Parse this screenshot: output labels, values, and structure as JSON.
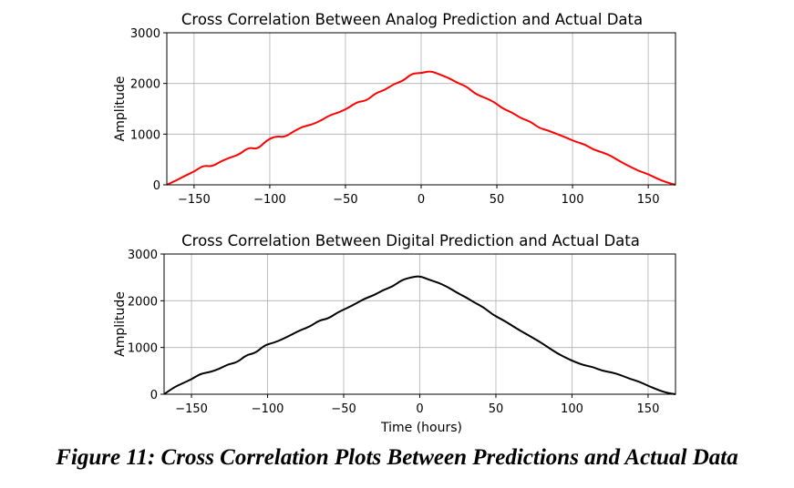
{
  "caption": "Figure 11: Cross Correlation Plots Between Predictions and Actual Data",
  "chart_data": [
    {
      "type": "line",
      "title": "Cross Correlation Between Analog Prediction and Actual Data",
      "xlabel": "",
      "ylabel": "Amplitude",
      "xlim": [
        -168,
        168
      ],
      "ylim": [
        0,
        3000
      ],
      "xticks": [
        -150,
        -100,
        -50,
        0,
        50,
        100,
        150
      ],
      "yticks": [
        0,
        1000,
        2000,
        3000
      ],
      "grid": true,
      "series": [
        {
          "color": "#ff0000",
          "x": [
            -168,
            -162,
            -156,
            -150,
            -144,
            -138,
            -132,
            -126,
            -120,
            -114,
            -108,
            -102,
            -96,
            -90,
            -84,
            -78,
            -72,
            -66,
            -60,
            -54,
            -48,
            -42,
            -36,
            -30,
            -24,
            -18,
            -12,
            -6,
            0,
            6,
            12,
            18,
            24,
            30,
            36,
            42,
            48,
            54,
            60,
            66,
            72,
            78,
            84,
            90,
            96,
            102,
            108,
            114,
            120,
            126,
            132,
            138,
            144,
            150,
            156,
            162,
            168
          ],
          "y": [
            0,
            80,
            180,
            260,
            380,
            360,
            470,
            540,
            600,
            740,
            700,
            880,
            960,
            940,
            1060,
            1150,
            1190,
            1270,
            1380,
            1430,
            1520,
            1640,
            1660,
            1810,
            1870,
            1990,
            2050,
            2200,
            2200,
            2250,
            2180,
            2110,
            2010,
            1940,
            1790,
            1720,
            1640,
            1500,
            1430,
            1310,
            1250,
            1120,
            1070,
            1000,
            930,
            850,
            800,
            690,
            640,
            560,
            450,
            360,
            270,
            210,
            120,
            50,
            0
          ]
        }
      ]
    },
    {
      "type": "line",
      "title": "Cross Correlation Between Digital Prediction and Actual Data",
      "xlabel": "Time (hours)",
      "ylabel": "Amplitude",
      "xlim": [
        -168,
        168
      ],
      "ylim": [
        0,
        3000
      ],
      "xticks": [
        -150,
        -100,
        -50,
        0,
        50,
        100,
        150
      ],
      "yticks": [
        0,
        1000,
        2000,
        3000
      ],
      "grid": true,
      "series": [
        {
          "color": "#000000",
          "x": [
            -168,
            -162,
            -156,
            -150,
            -144,
            -138,
            -132,
            -126,
            -120,
            -114,
            -108,
            -102,
            -96,
            -90,
            -84,
            -78,
            -72,
            -66,
            -60,
            -54,
            -48,
            -42,
            -36,
            -30,
            -24,
            -18,
            -12,
            -6,
            0,
            6,
            12,
            18,
            24,
            30,
            36,
            42,
            48,
            54,
            60,
            66,
            72,
            78,
            84,
            90,
            96,
            102,
            108,
            114,
            120,
            126,
            132,
            138,
            144,
            150,
            156,
            162,
            168
          ],
          "y": [
            0,
            140,
            230,
            320,
            440,
            470,
            540,
            640,
            680,
            840,
            880,
            1050,
            1100,
            1180,
            1280,
            1380,
            1450,
            1580,
            1620,
            1750,
            1840,
            1940,
            2050,
            2120,
            2230,
            2300,
            2440,
            2500,
            2530,
            2450,
            2390,
            2300,
            2180,
            2080,
            1960,
            1860,
            1700,
            1600,
            1480,
            1360,
            1250,
            1140,
            1010,
            880,
            780,
            690,
            620,
            580,
            500,
            470,
            410,
            330,
            270,
            180,
            100,
            30,
            0
          ]
        }
      ]
    }
  ]
}
